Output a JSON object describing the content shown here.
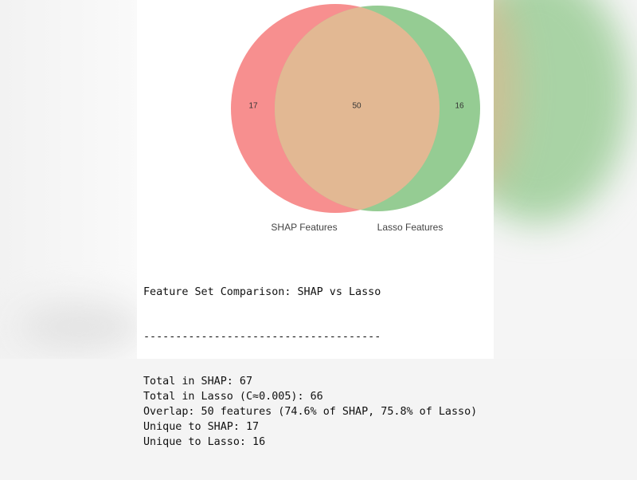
{
  "chart_data": {
    "type": "venn",
    "sets": [
      {
        "name": "SHAP Features",
        "color": "#f78f8f",
        "value": 17
      },
      {
        "name": "Lasso Features",
        "color": "#95cc93",
        "value": 16
      }
    ],
    "overlap": {
      "value": 50,
      "color": "#e2b893"
    }
  },
  "console": {
    "title": "Feature Set Comparison: SHAP vs Lasso",
    "separator": "-------------------------------------",
    "lines": [
      "Total in SHAP: 67",
      "Total in Lasso (C≈0.005): 66",
      "Overlap: 50 features (74.6% of SHAP, 75.8% of Lasso)",
      "Unique to SHAP: 17",
      "Unique to Lasso: 16"
    ]
  }
}
